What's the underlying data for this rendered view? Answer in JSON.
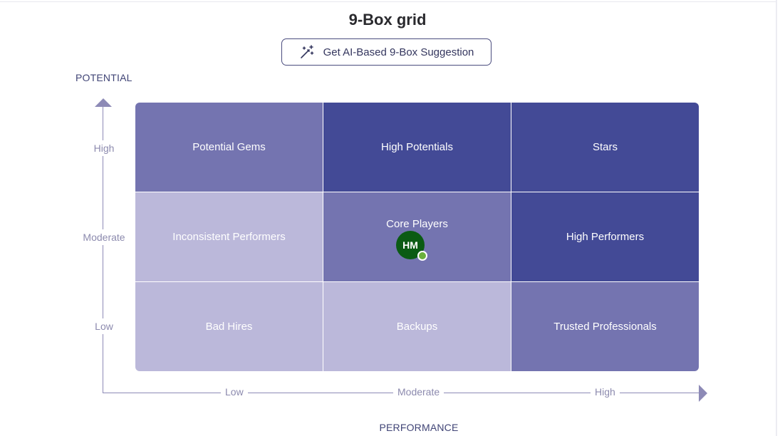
{
  "title": "9-Box grid",
  "ai_button": {
    "label": "Get AI-Based 9-Box Suggestion",
    "icon": "magic-wand-icon"
  },
  "y_axis": {
    "title": "POTENTIAL",
    "ticks": [
      "High",
      "Moderate",
      "Low"
    ]
  },
  "x_axis": {
    "title": "PERFORMANCE",
    "ticks": [
      "Low",
      "Moderate",
      "High"
    ]
  },
  "grid": {
    "row_high": [
      "Potential Gems",
      "High Potentials",
      "Stars"
    ],
    "row_moderate": [
      "Inconsistent Performers",
      "Core Players",
      "High Performers"
    ],
    "row_low": [
      "Bad Hires",
      "Backups",
      "Trusted Professionals"
    ]
  },
  "employee": {
    "initials": "HM",
    "presence": "available"
  },
  "colors": {
    "light": "#bbb8da",
    "mid": "#7474b0",
    "dark": "#434a96",
    "avatar": "#0b5b14",
    "presence": "#6bb03d"
  }
}
